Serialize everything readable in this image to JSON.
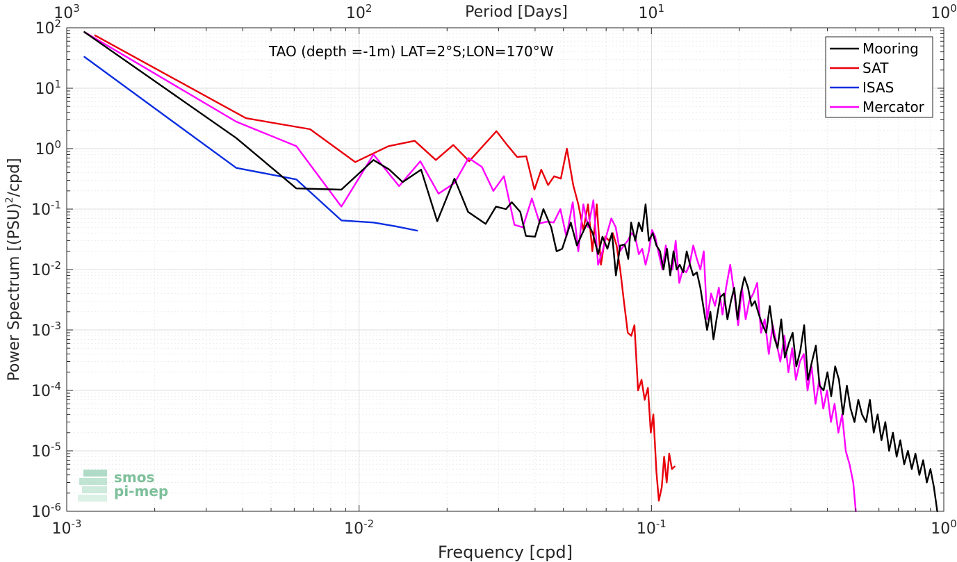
{
  "chart_data": {
    "type": "line",
    "xscale": "log",
    "yscale": "log",
    "xlim": [
      0.001,
      1
    ],
    "ylim": [
      1e-06,
      100
    ],
    "grid": true,
    "xlabel": "Frequency [cpd]",
    "ylabel_main": "Power Spectrum [(PSU)",
    "ylabel_sup": "2",
    "ylabel_tail": "/cpd]",
    "top_axis_label": "Period [Days]",
    "annotation": "TAO (depth =-1m) LAT=2°S;LON=170°W",
    "legend_position": "top-right",
    "bottom_ticks": [
      {
        "base": "10",
        "exp": "-3",
        "v": 0.001
      },
      {
        "base": "10",
        "exp": "-2",
        "v": 0.01
      },
      {
        "base": "10",
        "exp": "-1",
        "v": 0.1
      },
      {
        "base": "10",
        "exp": "0",
        "v": 1
      }
    ],
    "top_ticks": [
      {
        "base": "10",
        "exp": "3",
        "v": 0.001
      },
      {
        "base": "10",
        "exp": "2",
        "v": 0.01
      },
      {
        "base": "10",
        "exp": "1",
        "v": 0.1
      },
      {
        "base": "10",
        "exp": "0",
        "v": 1
      }
    ],
    "left_ticks": [
      {
        "base": "10",
        "exp": "2",
        "v": 100
      },
      {
        "base": "10",
        "exp": "1",
        "v": 10
      },
      {
        "base": "10",
        "exp": "0",
        "v": 1
      },
      {
        "base": "10",
        "exp": "-1",
        "v": 0.1
      },
      {
        "base": "10",
        "exp": "-2",
        "v": 0.01
      },
      {
        "base": "10",
        "exp": "-3",
        "v": 0.001
      },
      {
        "base": "10",
        "exp": "-4",
        "v": 0.0001
      },
      {
        "base": "10",
        "exp": "-5",
        "v": 1e-05
      },
      {
        "base": "10",
        "exp": "-6",
        "v": 1e-06
      }
    ],
    "series": [
      {
        "name": "Mooring",
        "color": "#000000",
        "x": [
          0.00115,
          0.0038,
          0.0061,
          0.0087,
          0.0112,
          0.0127,
          0.0141,
          0.0163,
          0.0185,
          0.0212,
          0.0236,
          0.0271,
          0.0294,
          0.0318,
          0.0333,
          0.0356,
          0.0372,
          0.04,
          0.0427,
          0.0454,
          0.0474,
          0.0495,
          0.053,
          0.0556,
          0.0581,
          0.0605,
          0.063,
          0.0657,
          0.068,
          0.0707,
          0.0733,
          0.0756,
          0.0782,
          0.081,
          0.0833,
          0.0852,
          0.088,
          0.0905,
          0.0929,
          0.0955,
          0.098,
          0.101,
          0.104,
          0.107,
          0.11,
          0.113,
          0.116,
          0.119,
          0.122,
          0.125,
          0.1285,
          0.132,
          0.1355,
          0.139,
          0.143,
          0.147,
          0.151,
          0.155,
          0.159,
          0.163,
          0.167,
          0.172,
          0.177,
          0.182,
          0.187,
          0.192,
          0.197,
          0.202,
          0.208,
          0.214,
          0.22,
          0.226,
          0.233,
          0.24,
          0.247,
          0.254,
          0.262,
          0.27,
          0.278,
          0.286,
          0.295,
          0.304,
          0.313,
          0.323,
          0.333,
          0.343,
          0.354,
          0.365,
          0.376,
          0.388,
          0.4,
          0.412,
          0.425,
          0.438,
          0.452,
          0.466,
          0.48,
          0.495,
          0.51,
          0.525,
          0.542,
          0.559,
          0.576,
          0.594,
          0.612,
          0.631,
          0.65,
          0.67,
          0.69,
          0.71,
          0.732,
          0.754,
          0.777,
          0.8,
          0.825,
          0.85,
          0.875,
          0.9,
          0.925,
          0.95
        ],
        "y": [
          85,
          1.5,
          0.22,
          0.21,
          0.65,
          0.45,
          0.28,
          0.45,
          0.063,
          0.32,
          0.09,
          0.057,
          0.11,
          0.1,
          0.13,
          0.09,
          0.036,
          0.035,
          0.1,
          0.05,
          0.02,
          0.022,
          0.06,
          0.025,
          0.04,
          0.06,
          0.04,
          0.018,
          0.035,
          0.022,
          0.04,
          0.008,
          0.025,
          0.026,
          0.015,
          0.06,
          0.03,
          0.06,
          0.043,
          0.12,
          0.03,
          0.04,
          0.025,
          0.02,
          0.01,
          0.022,
          0.008,
          0.02,
          0.01,
          0.012,
          0.009,
          0.02,
          0.012,
          0.008,
          0.009,
          0.005,
          0.0022,
          0.001,
          0.002,
          0.0007,
          0.0015,
          0.0035,
          0.004,
          0.0015,
          0.003,
          0.005,
          0.0015,
          0.004,
          0.0075,
          0.005,
          0.0025,
          0.003,
          0.0018,
          0.0012,
          0.0009,
          0.0025,
          0.0008,
          0.0005,
          0.0015,
          0.00035,
          0.0006,
          0.0009,
          0.00025,
          0.00045,
          0.0012,
          0.00015,
          0.0003,
          0.00055,
          0.00012,
          0.0001,
          0.0002,
          8e-05,
          0.00025,
          0.00015,
          4e-05,
          0.00012,
          5e-05,
          3e-05,
          7e-05,
          4e-05,
          3e-05,
          7e-05,
          2e-05,
          4e-05,
          1.5e-05,
          3e-05,
          1e-05,
          2e-05,
          8e-06,
          1.5e-05,
          6e-06,
          1e-05,
          5e-06,
          9e-06,
          4e-06,
          7e-06,
          3e-06,
          5e-06,
          2.5e-06,
          1e-06
        ]
      },
      {
        "name": "SAT",
        "color": "#e8000b",
        "x": [
          0.00125,
          0.0041,
          0.0068,
          0.0097,
          0.0126,
          0.0155,
          0.0183,
          0.021,
          0.0238,
          0.0265,
          0.0295,
          0.0321,
          0.0347,
          0.0373,
          0.0398,
          0.042,
          0.0443,
          0.0465,
          0.049,
          0.0514,
          0.054,
          0.0562,
          0.0585,
          0.0607,
          0.0628,
          0.065,
          0.0672,
          0.0695,
          0.0716,
          0.0738,
          0.076,
          0.0782,
          0.0805,
          0.083,
          0.0853,
          0.0875,
          0.09,
          0.0925,
          0.0948,
          0.0973,
          0.0995,
          0.1015,
          0.104,
          0.106,
          0.1085,
          0.1105,
          0.1128,
          0.115,
          0.1175,
          0.12
        ],
        "y": [
          75,
          3.2,
          2.1,
          0.6,
          1.1,
          1.35,
          0.65,
          1.15,
          0.62,
          1.1,
          1.95,
          1.15,
          0.73,
          0.75,
          0.21,
          0.45,
          0.25,
          0.35,
          0.32,
          1.0,
          0.25,
          0.12,
          0.045,
          0.12,
          0.02,
          0.12,
          0.012,
          0.035,
          0.03,
          0.04,
          0.025,
          0.01,
          0.003,
          0.0009,
          0.0008,
          0.0012,
          0.0001,
          0.00015,
          7e-05,
          0.00011,
          2e-05,
          4e-05,
          4.5e-06,
          1.5e-06,
          2.5e-06,
          8e-06,
          3e-06,
          9e-06,
          5e-06,
          5.5e-06
        ]
      },
      {
        "name": "ISAS",
        "color": "#0a2de0",
        "x": [
          0.00115,
          0.0038,
          0.0061,
          0.0087,
          0.0112,
          0.0133,
          0.0158
        ],
        "y": [
          33,
          0.48,
          0.31,
          0.065,
          0.06,
          0.052,
          0.044
        ]
      },
      {
        "name": "Mercator",
        "color": "#ff00ff",
        "x": [
          0.00115,
          0.0038,
          0.0061,
          0.0087,
          0.0112,
          0.0137,
          0.0162,
          0.0187,
          0.0212,
          0.0237,
          0.0263,
          0.0288,
          0.0313,
          0.034,
          0.0363,
          0.039,
          0.0415,
          0.044,
          0.0463,
          0.0488,
          0.0512,
          0.0538,
          0.0562,
          0.0585,
          0.0608,
          0.0633,
          0.0657,
          0.068,
          0.0705,
          0.0729,
          0.0755,
          0.078,
          0.0805,
          0.083,
          0.0855,
          0.088,
          0.0905,
          0.093,
          0.0955,
          0.098,
          0.1005,
          0.103,
          0.106,
          0.109,
          0.112,
          0.115,
          0.118,
          0.121,
          0.1245,
          0.128,
          0.1315,
          0.135,
          0.139,
          0.143,
          0.147,
          0.151,
          0.155,
          0.16,
          0.165,
          0.17,
          0.175,
          0.18,
          0.186,
          0.192,
          0.198,
          0.204,
          0.21,
          0.216,
          0.223,
          0.23,
          0.237,
          0.244,
          0.252,
          0.26,
          0.268,
          0.276,
          0.285,
          0.294,
          0.303,
          0.312,
          0.322,
          0.332,
          0.342,
          0.353,
          0.364,
          0.375,
          0.387,
          0.399,
          0.411,
          0.423,
          0.436,
          0.449,
          0.462,
          0.476,
          0.49,
          0.5
        ],
        "y": [
          85,
          2.8,
          1.1,
          0.11,
          0.8,
          0.24,
          0.62,
          0.18,
          0.27,
          0.7,
          0.5,
          0.2,
          0.35,
          0.055,
          0.05,
          0.15,
          0.058,
          0.062,
          0.06,
          0.1,
          0.035,
          0.13,
          0.02,
          0.12,
          0.05,
          0.14,
          0.012,
          0.02,
          0.04,
          0.07,
          0.05,
          0.02,
          0.025,
          0.03,
          0.04,
          0.035,
          0.018,
          0.022,
          0.012,
          0.02,
          0.045,
          0.035,
          0.018,
          0.01,
          0.025,
          0.012,
          0.01,
          0.03,
          0.006,
          0.01,
          0.009,
          0.012,
          0.025,
          0.015,
          0.01,
          0.02,
          0.0015,
          0.004,
          0.0025,
          0.005,
          0.0018,
          0.005,
          0.012,
          0.004,
          0.0012,
          0.005,
          0.0015,
          0.003,
          0.004,
          0.006,
          0.0009,
          0.0015,
          0.0004,
          0.0012,
          0.0006,
          0.0003,
          0.0008,
          0.0002,
          0.0005,
          0.00015,
          0.0003,
          0.0004,
          0.0001,
          0.00025,
          6e-05,
          0.00015,
          5e-05,
          0.0001,
          3e-05,
          6e-05,
          2e-05,
          4e-05,
          1e-05,
          6e-06,
          3e-06,
          1e-06
        ]
      }
    ]
  },
  "logo": {
    "line1": "smos",
    "line2": "pi-mep"
  }
}
